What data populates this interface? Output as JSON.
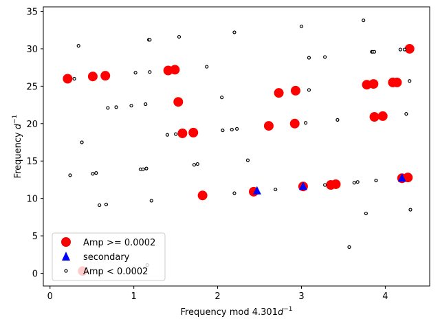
{
  "chart_data": {
    "type": "scatter",
    "xlabel_main": "Frequency mod 4.301",
    "xlabel_unit": "d",
    "xlabel_exp": "−1",
    "ylabel_main": "Frequency ",
    "ylabel_unit": "d",
    "ylabel_exp": "−1",
    "xlim": [
      -0.08,
      4.53
    ],
    "ylim": [
      -1.7,
      35.6
    ],
    "xticks": [
      0,
      1,
      2,
      3,
      4
    ],
    "yticks": [
      0,
      5,
      10,
      15,
      20,
      25,
      30,
      35
    ],
    "legend_position": "lower-left",
    "series": [
      {
        "name": "Amp >= 0.0002",
        "marker": "circle-large",
        "color": "#ff0000",
        "points": [
          [
            0.21,
            26.0
          ],
          [
            0.51,
            26.3
          ],
          [
            0.66,
            26.4
          ],
          [
            1.41,
            27.1
          ],
          [
            1.49,
            27.2
          ],
          [
            1.53,
            22.9
          ],
          [
            1.58,
            18.7
          ],
          [
            1.71,
            18.8
          ],
          [
            1.82,
            10.4
          ],
          [
            2.43,
            10.9
          ],
          [
            2.61,
            19.7
          ],
          [
            2.73,
            24.1
          ],
          [
            2.92,
            20.0
          ],
          [
            2.93,
            24.4
          ],
          [
            3.02,
            11.6
          ],
          [
            3.35,
            11.8
          ],
          [
            3.41,
            11.9
          ],
          [
            3.78,
            25.2
          ],
          [
            3.86,
            25.3
          ],
          [
            3.87,
            20.9
          ],
          [
            3.97,
            21.0
          ],
          [
            4.09,
            25.5
          ],
          [
            4.14,
            25.5
          ],
          [
            4.2,
            12.7
          ],
          [
            4.27,
            12.8
          ],
          [
            4.29,
            30.0
          ],
          [
            0.39,
            0.3
          ]
        ]
      },
      {
        "name": "secondary",
        "marker": "triangle",
        "color": "#0000ff",
        "points": [
          [
            2.47,
            11.0
          ],
          [
            3.02,
            11.6
          ],
          [
            4.2,
            12.7
          ]
        ]
      },
      {
        "name": "Amp < 0.0002",
        "marker": "circle-small",
        "color": "#000000",
        "points": [
          [
            0.29,
            26.0
          ],
          [
            0.34,
            30.4
          ],
          [
            0.38,
            17.5
          ],
          [
            0.24,
            13.1
          ],
          [
            0.51,
            13.3
          ],
          [
            0.55,
            13.4
          ],
          [
            0.59,
            9.1
          ],
          [
            0.67,
            9.2
          ],
          [
            0.69,
            22.1
          ],
          [
            0.79,
            22.2
          ],
          [
            0.97,
            22.4
          ],
          [
            1.02,
            26.8
          ],
          [
            1.08,
            13.9
          ],
          [
            1.11,
            13.9
          ],
          [
            1.15,
            14.0
          ],
          [
            1.14,
            22.6
          ],
          [
            1.18,
            31.2
          ],
          [
            1.19,
            31.2
          ],
          [
            1.19,
            26.9
          ],
          [
            1.21,
            9.7
          ],
          [
            1.16,
            1.1
          ],
          [
            1.4,
            18.5
          ],
          [
            1.5,
            18.6
          ],
          [
            1.54,
            31.6
          ],
          [
            1.72,
            14.5
          ],
          [
            1.76,
            14.6
          ],
          [
            1.87,
            27.6
          ],
          [
            2.05,
            23.5
          ],
          [
            2.06,
            19.1
          ],
          [
            2.17,
            19.2
          ],
          [
            2.2,
            10.7
          ],
          [
            2.23,
            19.3
          ],
          [
            2.2,
            32.2
          ],
          [
            2.36,
            15.1
          ],
          [
            2.69,
            11.2
          ],
          [
            3.0,
            33.0
          ],
          [
            3.05,
            20.1
          ],
          [
            3.09,
            28.8
          ],
          [
            3.09,
            24.5
          ],
          [
            3.28,
            28.9
          ],
          [
            3.28,
            11.8
          ],
          [
            3.43,
            20.5
          ],
          [
            3.57,
            3.5
          ],
          [
            3.63,
            12.1
          ],
          [
            3.67,
            12.2
          ],
          [
            3.74,
            33.8
          ],
          [
            3.77,
            8.0
          ],
          [
            3.84,
            29.6
          ],
          [
            3.85,
            29.6
          ],
          [
            3.87,
            29.6
          ],
          [
            3.89,
            12.4
          ],
          [
            4.18,
            29.9
          ],
          [
            4.23,
            29.9
          ],
          [
            4.25,
            21.3
          ],
          [
            4.29,
            25.7
          ],
          [
            4.3,
            8.5
          ]
        ]
      }
    ]
  }
}
